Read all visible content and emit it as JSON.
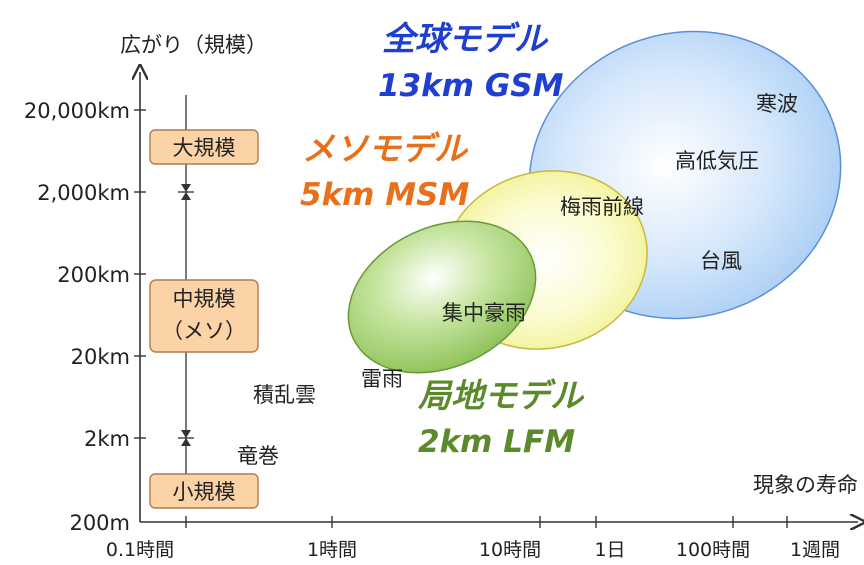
{
  "axes": {
    "y_title": "広がり（規模）",
    "x_title": "現象の寿命",
    "y_ticks": [
      "20,000km",
      "2,000km",
      "200km",
      "20km",
      "2km",
      "200m"
    ],
    "x_ticks": [
      "0.1時間",
      "1時間",
      "10時間",
      "1日",
      "100時間",
      "1週間"
    ]
  },
  "scales": {
    "large": "大規模",
    "meso_line1": "中規模",
    "meso_line2": "（メソ）",
    "small": "小規模"
  },
  "models": {
    "gsm": {
      "name": "全球モデル",
      "spec": "13km GSM",
      "color": "#1f3fd1"
    },
    "msm": {
      "name": "メソモデル",
      "spec": "5km MSM",
      "color": "#e8701a"
    },
    "lfm": {
      "name": "局地モデル",
      "spec": "2km LFM",
      "color": "#5a8a2a"
    }
  },
  "phenomena": {
    "cold_wave": "寒波",
    "pressure": "高低気圧",
    "baiu": "梅雨前線",
    "typhoon": "台風",
    "heavy_rain": "集中豪雨",
    "thunderstorm": "雷雨",
    "cumulonimbus": "積乱雲",
    "tornado": "竜巻"
  }
}
